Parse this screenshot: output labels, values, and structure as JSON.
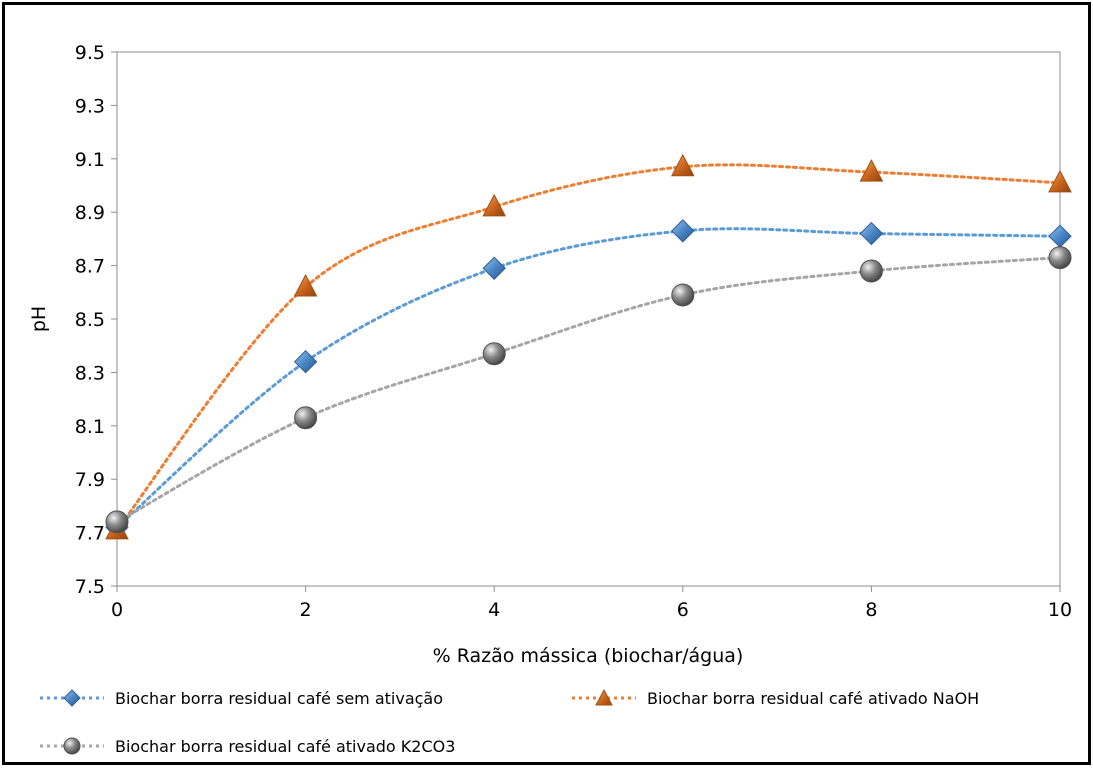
{
  "chart_data": {
    "type": "line",
    "title": "",
    "xlabel": "% Razão mássica (biochar/água)",
    "ylabel": "pH",
    "xlim": [
      0,
      10
    ],
    "ylim": [
      7.5,
      9.5
    ],
    "x_ticks": [
      0,
      2,
      4,
      6,
      8,
      10
    ],
    "y_ticks": [
      7.5,
      7.7,
      7.9,
      8.1,
      8.3,
      8.5,
      8.7,
      8.9,
      9.1,
      9.3,
      9.5
    ],
    "x_tick_labels": [
      "0",
      "2",
      "4",
      "6",
      "8",
      "10"
    ],
    "y_tick_labels": [
      "7.5",
      "7.7",
      "7.9",
      "8.1",
      "8.3",
      "8.5",
      "8.7",
      "8.9",
      "9.1",
      "9.3",
      "9.5"
    ],
    "grid": false,
    "legend_position": "bottom",
    "x": [
      0,
      2,
      4,
      6,
      8,
      10
    ],
    "series": [
      {
        "name": "Biochar borra residual café sem ativação",
        "values": [
          7.72,
          8.34,
          8.69,
          8.83,
          8.82,
          8.81
        ],
        "color": "#5b9bd5",
        "marker": "diamond"
      },
      {
        "name": "Biochar borra residual café ativado NaOH",
        "values": [
          7.71,
          8.62,
          8.92,
          9.07,
          9.05,
          9.01
        ],
        "color": "#ed7d31",
        "marker": "triangle"
      },
      {
        "name": "Biochar borra residual café ativado K2CO3",
        "values": [
          7.74,
          8.13,
          8.37,
          8.59,
          8.68,
          8.73
        ],
        "color": "#a5a5a5",
        "marker": "sphere"
      }
    ]
  }
}
